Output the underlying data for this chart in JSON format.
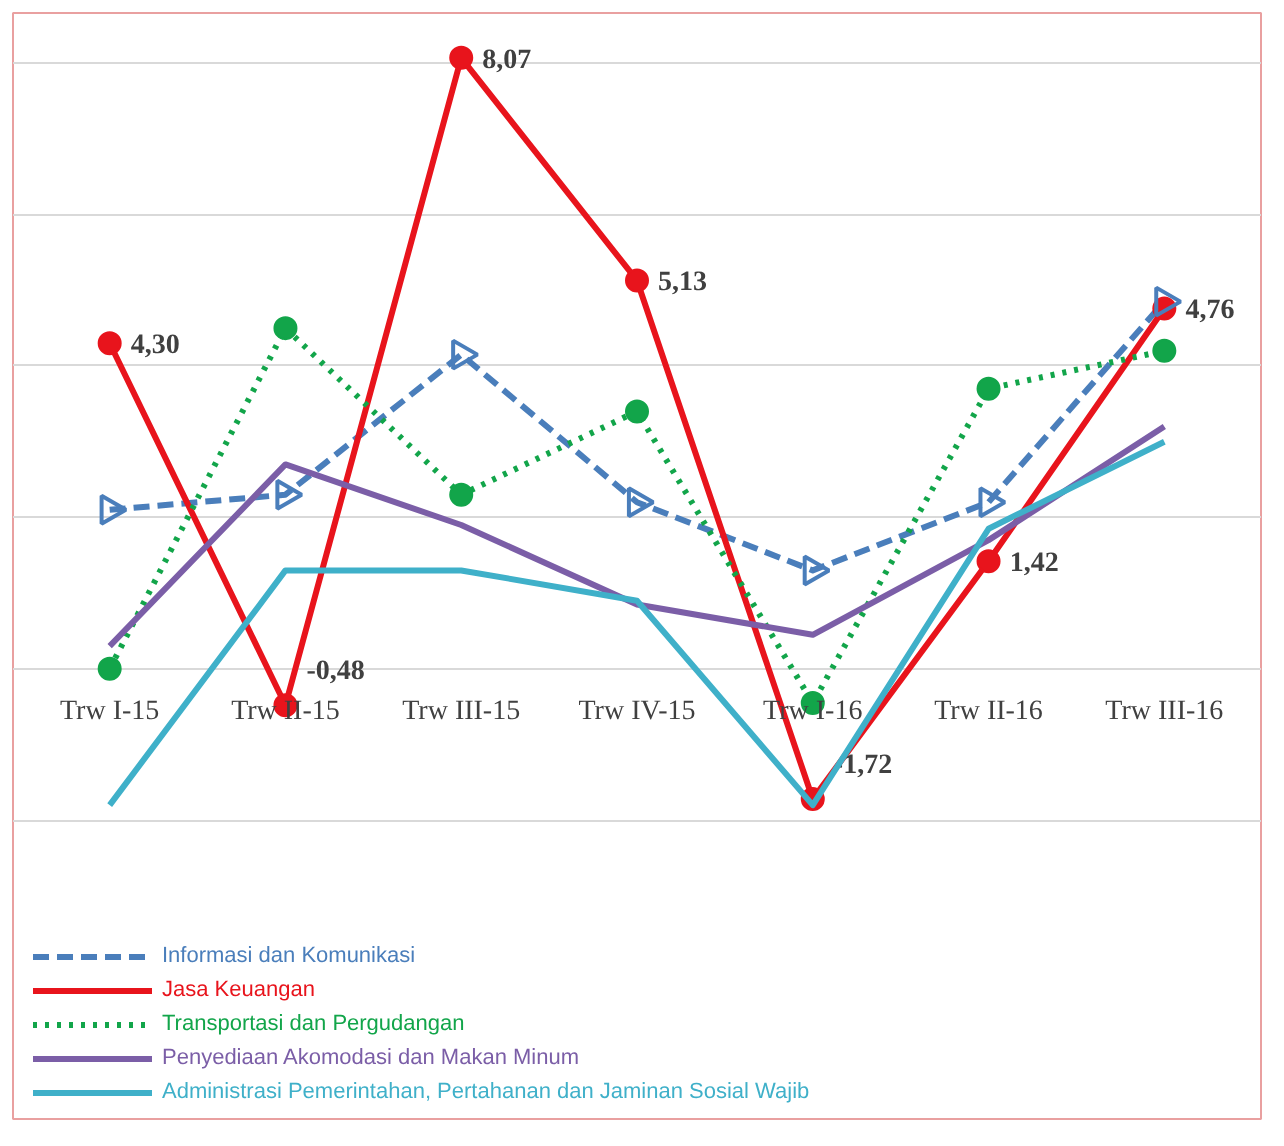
{
  "chart_data": {
    "type": "line",
    "categories": [
      "Trw I-15",
      "Trw II-15",
      "Trw III-15",
      "Trw IV-15",
      "Trw I-16",
      "Trw II-16",
      "Trw III-16"
    ],
    "grid": "y",
    "legend": "bottom",
    "tick_labels": "x",
    "series": [
      {
        "name": "Informasi dan Komunikasi",
        "color": "#4a7ebb",
        "values": [
          2.1,
          2.3,
          4.15,
          2.2,
          1.3,
          2.2,
          4.85
        ],
        "marker": "triangle",
        "line_style": "dashed"
      },
      {
        "name": "Jasa Keuangan",
        "color": "#e8141c",
        "values": [
          4.3,
          -0.48,
          8.07,
          5.13,
          -1.72,
          1.42,
          4.76
        ],
        "marker": "circle",
        "line_style": "solid",
        "value_labels": [
          "4,30",
          "-0,48",
          "8,07",
          "5,13",
          "-1,72",
          "1,42",
          "4,76"
        ]
      },
      {
        "name": "Transportasi dan Pergudangan",
        "color": "#12a54a",
        "values": [
          0.0,
          4.5,
          2.3,
          3.4,
          -0.45,
          3.7,
          4.2
        ],
        "marker": "circle",
        "line_style": "dotted"
      },
      {
        "name": "Penyediaan Akomodasi dan Makan Minum",
        "color": "#7b5ea7",
        "values": [
          0.3,
          2.7,
          1.9,
          0.85,
          0.45,
          1.7,
          3.2
        ],
        "marker": "none",
        "line_style": "solid"
      },
      {
        "name": "Administrasi Pemerintahan, Pertahanan dan Jaminan Sosial Wajib",
        "color": "#3fb0c9",
        "values": [
          -1.8,
          1.3,
          1.3,
          0.9,
          -1.8,
          1.85,
          3.0
        ],
        "marker": "none",
        "line_style": "solid"
      }
    ]
  }
}
